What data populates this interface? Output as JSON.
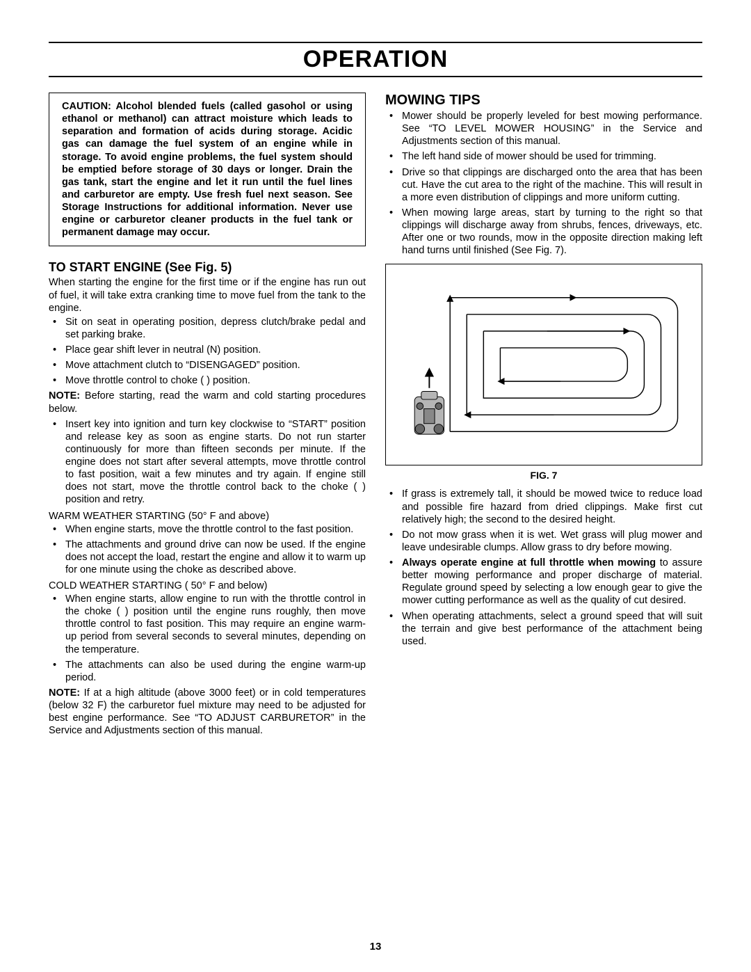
{
  "page": {
    "title": "OPERATION",
    "number": "13"
  },
  "caution": "CAUTION:  Alcohol blended fuels (called gasohol or using ethanol or methanol) can attract moisture which leads to separation and formation of acids during storage.  Acidic gas can damage the fuel system of an engine while in storage.  To avoid engine problems, the fuel system should be emptied before storage of 30 days or longer.  Drain the gas tank, start the engine and let it run until the fuel lines and carburetor are empty.  Use fresh fuel next season. See Storage Instructions for additional information.  Never use engine or carburetor cleaner products in the fuel tank or permanent damage may occur.",
  "start_engine": {
    "heading": "TO START ENGINE (See Fig. 5)",
    "intro": "When starting the engine for the first time or if the engine has run out of fuel, it will take extra cranking time to move fuel from the tank to the engine.",
    "bullets1": [
      "Sit on seat in operating position, depress clutch/brake pedal and set parking brake.",
      "Place gear shift lever in neutral (N) position.",
      "Move attachment clutch to “DISENGAGED” position.",
      "Move throttle control to choke ( ) position."
    ],
    "note1_label": "NOTE:",
    "note1_body": "  Before starting, read the warm and cold starting procedures below.",
    "bullets2": [
      "Insert key into ignition and turn key clockwise to “START” position and release key as soon as engine starts. Do not run starter continuously for more than fifteen seconds per minute.  If the engine does not start after several attempts, move throttle control to fast  position, wait a few minutes and try again.  If engine still does not start, move the throttle control back to the choke ( ) position and retry."
    ],
    "warm_head": "WARM WEATHER STARTING (50° F and above)",
    "warm_bullets": [
      "When engine starts, move the throttle control to the fast position.",
      "The attachments and ground drive can now be used.  If the engine does not accept the load, restart the engine and allow it to warm up for one minute using the choke as described above."
    ],
    "cold_head": "COLD WEATHER STARTING ( 50° F and below)",
    "cold_bullets": [
      "When engine starts, allow engine to run with the throttle control in the choke ( ) position until the engine runs roughly, then move throttle control to fast position. This may require an engine warm-up period from several seconds to several minutes, depending on the temperature.",
      "The attachments can also be used during the engine warm-up period."
    ],
    "note2_label": "NOTE:",
    "note2_body": "  If at a high altitude (above 3000 feet) or in cold temperatures (below 32 F) the carburetor fuel mixture may need to be adjusted for best engine performance.  See “TO ADJUST CARBURETOR” in the Service and Adjustments section of this manual."
  },
  "mowing": {
    "heading": "MOWING TIPS",
    "bullets_top": [
      "Mower should be properly leveled for best mowing performance. See “TO LEVEL MOWER HOUSING” in the Service and Adjustments section of this manual.",
      "The left hand side of mower should be used for trimming.",
      "Drive so that clippings are discharged onto the area that has been cut.  Have the cut area to the right of the machine.  This will result in a more even distribution of clippings and more uniform cutting.",
      "When mowing large areas, start by turning to the right so that clippings will discharge away from shrubs, fences, driveways, etc.  After one or two rounds, mow in the opposite direction making left hand turns until finished (See Fig. 7)."
    ],
    "fig_caption": "FIG. 7",
    "bullets_bottom": [
      "If  grass is extremely tall, it should be mowed twice to reduce load and possible fire hazard from dried clippings.  Make first cut relatively high; the second to the desired height.",
      "Do not mow grass when it is wet.  Wet grass will plug mower and leave undesirable clumps.  Allow grass to dry before mowing.",
      "<b>Always operate engine at full throttle when mowing</b> to assure better mowing performance and proper discharge of material.  Regulate ground speed by selecting a low enough gear to give the mower cutting performance as well as the quality of cut desired.",
      "When operating attachments, select a ground speed that will suit the terrain and give best performance of the attachment being used."
    ]
  },
  "figure7": {
    "border_color": "#000000",
    "path_color": "#000000",
    "path_width": 1.5,
    "mower_fill": "#b5b5b5",
    "mower_stroke": "#000000"
  }
}
